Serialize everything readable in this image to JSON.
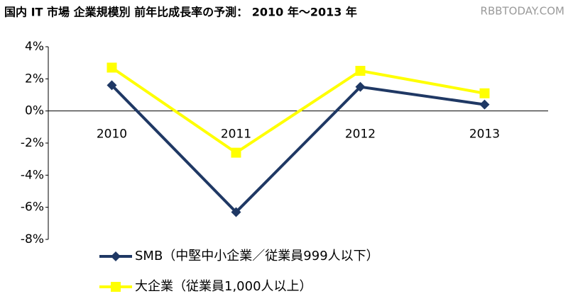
{
  "chart_data": {
    "type": "line",
    "title": "国内 IT 市場 企業規模別 前年比成長率の予測： 2010 年～2013 年",
    "watermark": "RBBTODAY.COM",
    "categories": [
      "2010",
      "2011",
      "2012",
      "2013"
    ],
    "series": [
      {
        "name": "SMB（中堅中小企業／従業員999人以下）",
        "color": "#1f3864",
        "marker": "diamond",
        "values": [
          1.6,
          -6.3,
          1.5,
          0.4
        ]
      },
      {
        "name": "大企業（従業員1,000人以上）",
        "color": "#ffff00",
        "marker": "square",
        "values": [
          2.7,
          -2.6,
          2.5,
          1.1
        ]
      }
    ],
    "ylim": [
      -8,
      4
    ],
    "yticks": [
      {
        "value": 4,
        "label": "4%"
      },
      {
        "value": 2,
        "label": "2%"
      },
      {
        "value": 0,
        "label": "0%"
      },
      {
        "value": -2,
        "label": "-2%"
      },
      {
        "value": -4,
        "label": "-4%"
      },
      {
        "value": -6,
        "label": "-6%"
      },
      {
        "value": -8,
        "label": "-8%"
      }
    ],
    "grid": false,
    "legend": "bottom"
  }
}
